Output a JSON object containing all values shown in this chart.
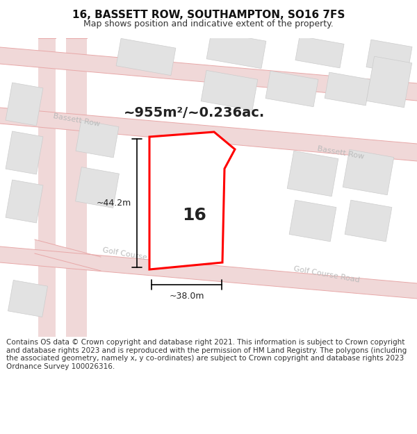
{
  "title": "16, BASSETT ROW, SOUTHAMPTON, SO16 7FS",
  "subtitle": "Map shows position and indicative extent of the property.",
  "footer": "Contains OS data © Crown copyright and database right 2021. This information is subject to Crown copyright and database rights 2023 and is reproduced with the permission of HM Land Registry. The polygons (including the associated geometry, namely x, y co-ordinates) are subject to Crown copyright and database rights 2023 Ordnance Survey 100026316.",
  "background_color": "#ffffff",
  "map_bg_color": "#f7f7f7",
  "road_fill": "#f0d8d8",
  "road_edge": "#e8a8a8",
  "road_lw": 0.7,
  "building_fill": "#e2e2e2",
  "building_edge": "#cccccc",
  "building_lw": 0.5,
  "property_fill": "#ffffff",
  "property_edge": "#ff0000",
  "property_lw": 2.2,
  "annotation_color": "#222222",
  "street_label_color": "#bbbbbb",
  "area_text": "~955m²/~0.236ac.",
  "number_label": "16",
  "dim_height": "~44.2m",
  "dim_width": "~38.0m",
  "title_fontsize": 11,
  "subtitle_fontsize": 9,
  "footer_fontsize": 7.5,
  "area_fontsize": 14,
  "number_fontsize": 18,
  "dim_fontsize": 9,
  "street_fontsize": 8
}
